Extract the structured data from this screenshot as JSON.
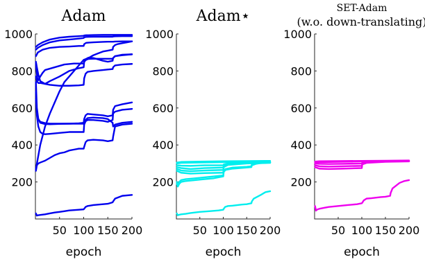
{
  "chart_data": [
    {
      "type": "line",
      "title": "Adam",
      "xlabel": "epoch",
      "ylabel": "",
      "xlim": [
        0,
        200
      ],
      "ylim": [
        0,
        1000
      ],
      "xticks": [
        "50",
        "100",
        "150",
        "200"
      ],
      "yticks": [
        "200",
        "400",
        "600",
        "800",
        "1000"
      ],
      "color": "#0000ee",
      "series": [
        {
          "x": [
            1,
            5,
            15,
            30,
            50,
            70,
            90,
            100,
            101,
            105,
            120,
            140,
            150,
            160,
            161,
            165,
            180,
            200
          ],
          "values": [
            930,
            940,
            955,
            970,
            980,
            985,
            988,
            990,
            992,
            993,
            994,
            995,
            995,
            995,
            995,
            995,
            995,
            995
          ]
        },
        {
          "x": [
            1,
            5,
            15,
            30,
            50,
            70,
            90,
            100,
            101,
            105,
            120,
            140,
            150,
            160,
            161,
            165,
            180,
            200
          ],
          "values": [
            915,
            925,
            940,
            955,
            965,
            970,
            975,
            978,
            982,
            984,
            985,
            985,
            985,
            985,
            986,
            987,
            988,
            988
          ]
        },
        {
          "x": [
            1,
            5,
            15,
            30,
            50,
            70,
            90,
            100,
            101,
            105,
            120,
            140,
            150,
            160,
            161,
            165,
            180,
            200
          ],
          "values": [
            880,
            900,
            915,
            925,
            930,
            932,
            935,
            935,
            945,
            952,
            955,
            957,
            958,
            958,
            958,
            959,
            960,
            960
          ]
        },
        {
          "x": [
            1,
            3,
            6,
            10,
            20,
            30,
            50,
            70,
            90,
            100,
            101,
            105,
            110,
            120,
            140,
            150,
            160,
            161,
            165,
            180,
            200
          ],
          "values": [
            850,
            820,
            780,
            745,
            730,
            745,
            770,
            800,
            815,
            820,
            850,
            860,
            865,
            866,
            866,
            866,
            866,
            870,
            880,
            888,
            890
          ]
        },
        {
          "x": [
            1,
            2,
            4,
            6,
            8,
            10,
            15,
            20,
            40,
            60,
            80,
            90,
            100,
            101,
            105,
            110,
            120,
            140,
            150,
            160,
            161,
            165,
            180,
            200
          ],
          "values": [
            840,
            810,
            760,
            750,
            760,
            770,
            790,
            805,
            820,
            835,
            840,
            840,
            840,
            850,
            865,
            872,
            870,
            855,
            850,
            855,
            870,
            880,
            885,
            890
          ]
        },
        {
          "x": [
            1,
            3,
            6,
            10,
            20,
            30,
            50,
            70,
            90,
            100,
            101,
            104,
            108,
            120,
            140,
            150,
            160,
            161,
            165,
            180,
            200
          ],
          "values": [
            770,
            745,
            735,
            735,
            730,
            725,
            720,
            720,
            722,
            725,
            760,
            785,
            795,
            800,
            805,
            808,
            810,
            820,
            830,
            835,
            838
          ]
        },
        {
          "x": [
            1,
            10,
            20,
            30,
            40,
            50,
            60,
            70,
            80,
            90,
            100,
            110,
            120,
            130,
            140,
            150,
            160,
            161,
            165,
            170,
            180,
            190,
            200
          ],
          "values": [
            270,
            400,
            500,
            570,
            630,
            690,
            740,
            770,
            800,
            830,
            860,
            870,
            885,
            895,
            905,
            910,
            915,
            930,
            940,
            945,
            950,
            955,
            960
          ]
        },
        {
          "x": [
            1,
            3,
            6,
            10,
            20,
            30,
            50,
            70,
            90,
            100,
            101,
            104,
            108,
            120,
            140,
            150,
            160,
            161,
            165,
            180,
            200
          ],
          "values": [
            740,
            600,
            540,
            520,
            513,
            512,
            514,
            515,
            517,
            520,
            540,
            560,
            568,
            565,
            560,
            555,
            560,
            590,
            610,
            620,
            630
          ]
        },
        {
          "x": [
            1,
            3,
            6,
            10,
            15,
            20,
            30,
            50,
            70,
            90,
            100,
            101,
            104,
            108,
            120,
            140,
            150,
            160,
            161,
            165,
            180,
            200
          ],
          "values": [
            690,
            560,
            500,
            470,
            460,
            458,
            460,
            465,
            470,
            470,
            470,
            510,
            528,
            535,
            535,
            530,
            525,
            535,
            570,
            580,
            590,
            595
          ]
        },
        {
          "x": [
            1,
            3,
            6,
            10,
            20,
            30,
            50,
            70,
            90,
            100,
            101,
            104,
            108,
            120,
            140,
            150,
            160,
            161,
            165,
            180,
            200
          ],
          "values": [
            645,
            575,
            540,
            525,
            518,
            515,
            515,
            515,
            515,
            515,
            515,
            535,
            545,
            548,
            545,
            540,
            520,
            500,
            510,
            520,
            525
          ]
        },
        {
          "x": [
            1,
            3,
            6,
            10,
            20,
            30,
            40,
            50,
            60,
            70,
            80,
            90,
            100,
            101,
            104,
            108,
            120,
            140,
            150,
            160,
            161,
            165,
            180,
            200
          ],
          "values": [
            260,
            290,
            300,
            305,
            315,
            330,
            345,
            355,
            360,
            370,
            375,
            380,
            380,
            390,
            415,
            425,
            428,
            425,
            420,
            425,
            445,
            500,
            510,
            515
          ]
        },
        {
          "x": [
            1,
            3,
            5,
            10,
            20,
            30,
            40,
            50,
            60,
            70,
            80,
            90,
            100,
            101,
            104,
            108,
            120,
            140,
            150,
            160,
            161,
            165,
            180,
            200
          ],
          "values": [
            30,
            18,
            20,
            22,
            25,
            30,
            35,
            38,
            42,
            46,
            48,
            50,
            52,
            55,
            65,
            70,
            75,
            80,
            82,
            90,
            95,
            110,
            125,
            130
          ]
        }
      ]
    },
    {
      "type": "line",
      "title": "Adam⋆",
      "xlabel": "epoch",
      "ylabel": "",
      "xlim": [
        0,
        200
      ],
      "ylim": [
        0,
        1000
      ],
      "xticks": [
        "50",
        "100",
        "150",
        "200"
      ],
      "yticks": [
        "200",
        "400",
        "600",
        "800",
        "1000"
      ],
      "color": "#00eeee",
      "series": [
        {
          "x": [
            1,
            10,
            50,
            100,
            150,
            200
          ],
          "values": [
            305,
            308,
            310,
            312,
            313,
            314
          ]
        },
        {
          "x": [
            1,
            10,
            50,
            100,
            150,
            200
          ],
          "values": [
            300,
            303,
            305,
            307,
            308,
            309
          ]
        },
        {
          "x": [
            1,
            10,
            30,
            60,
            100,
            101,
            110,
            150,
            200
          ],
          "values": [
            290,
            288,
            287,
            290,
            290,
            295,
            300,
            305,
            306
          ]
        },
        {
          "x": [
            1,
            10,
            30,
            60,
            100,
            101,
            110,
            150,
            200
          ],
          "values": [
            280,
            275,
            270,
            275,
            278,
            290,
            298,
            305,
            308
          ]
        },
        {
          "x": [
            1,
            10,
            30,
            60,
            100,
            101,
            110,
            150,
            200
          ],
          "values": [
            270,
            262,
            258,
            262,
            265,
            285,
            295,
            302,
            305
          ]
        },
        {
          "x": [
            1,
            10,
            30,
            60,
            100,
            101,
            110,
            150,
            200
          ],
          "values": [
            260,
            250,
            245,
            248,
            250,
            280,
            292,
            300,
            303
          ]
        },
        {
          "x": [
            1,
            3,
            6,
            10,
            20,
            40,
            60,
            80,
            100,
            101,
            105,
            120,
            150,
            160,
            161,
            170,
            180,
            200
          ],
          "values": [
            200,
            180,
            200,
            210,
            215,
            220,
            225,
            230,
            235,
            260,
            270,
            278,
            282,
            285,
            295,
            300,
            303,
            305
          ]
        },
        {
          "x": [
            1,
            3,
            6,
            10,
            20,
            40,
            60,
            80,
            100,
            101,
            105,
            120,
            150,
            160,
            161,
            170,
            180,
            200
          ],
          "values": [
            190,
            175,
            190,
            200,
            205,
            210,
            215,
            220,
            230,
            255,
            265,
            272,
            278,
            280,
            290,
            298,
            302,
            305
          ]
        },
        {
          "x": [
            1,
            3,
            5,
            10,
            20,
            30,
            50,
            70,
            90,
            100,
            101,
            104,
            110,
            120,
            140,
            150,
            160,
            161,
            165,
            180,
            190,
            200
          ],
          "values": [
            30,
            20,
            22,
            25,
            28,
            32,
            38,
            42,
            46,
            50,
            55,
            65,
            70,
            72,
            78,
            80,
            85,
            95,
            110,
            130,
            145,
            150
          ]
        }
      ]
    },
    {
      "type": "line",
      "title": "SET-Adam",
      "subtitle": "(w.o. down-translating)",
      "xlabel": "epoch",
      "ylabel": "",
      "xlim": [
        0,
        200
      ],
      "ylim": [
        0,
        1000
      ],
      "xticks": [
        "50",
        "100",
        "150",
        "200"
      ],
      "yticks": [
        "200",
        "400",
        "600",
        "800",
        "1000"
      ],
      "color": "#ee00ee",
      "series": [
        {
          "x": [
            1,
            10,
            50,
            100,
            150,
            200
          ],
          "values": [
            310,
            312,
            313,
            314,
            315,
            316
          ]
        },
        {
          "x": [
            1,
            10,
            50,
            100,
            150,
            200
          ],
          "values": [
            305,
            307,
            309,
            311,
            313,
            314
          ]
        },
        {
          "x": [
            1,
            10,
            30,
            60,
            100,
            101,
            110,
            150,
            200
          ],
          "values": [
            300,
            298,
            297,
            298,
            300,
            305,
            308,
            312,
            313
          ]
        },
        {
          "x": [
            1,
            10,
            30,
            60,
            100,
            101,
            110,
            150,
            200
          ],
          "values": [
            290,
            285,
            283,
            285,
            287,
            298,
            305,
            310,
            312
          ]
        },
        {
          "x": [
            1,
            10,
            30,
            60,
            100,
            101,
            110,
            150,
            200
          ],
          "values": [
            280,
            272,
            270,
            272,
            275,
            295,
            303,
            309,
            311
          ]
        },
        {
          "x": [
            1,
            3,
            5,
            10,
            20,
            30,
            50,
            70,
            90,
            100,
            101,
            104,
            110,
            120,
            140,
            150,
            160,
            161,
            165,
            180,
            190,
            200
          ],
          "values": [
            70,
            45,
            50,
            55,
            60,
            65,
            70,
            75,
            80,
            85,
            88,
            100,
            110,
            112,
            118,
            120,
            125,
            140,
            165,
            195,
            205,
            210
          ]
        }
      ]
    }
  ]
}
